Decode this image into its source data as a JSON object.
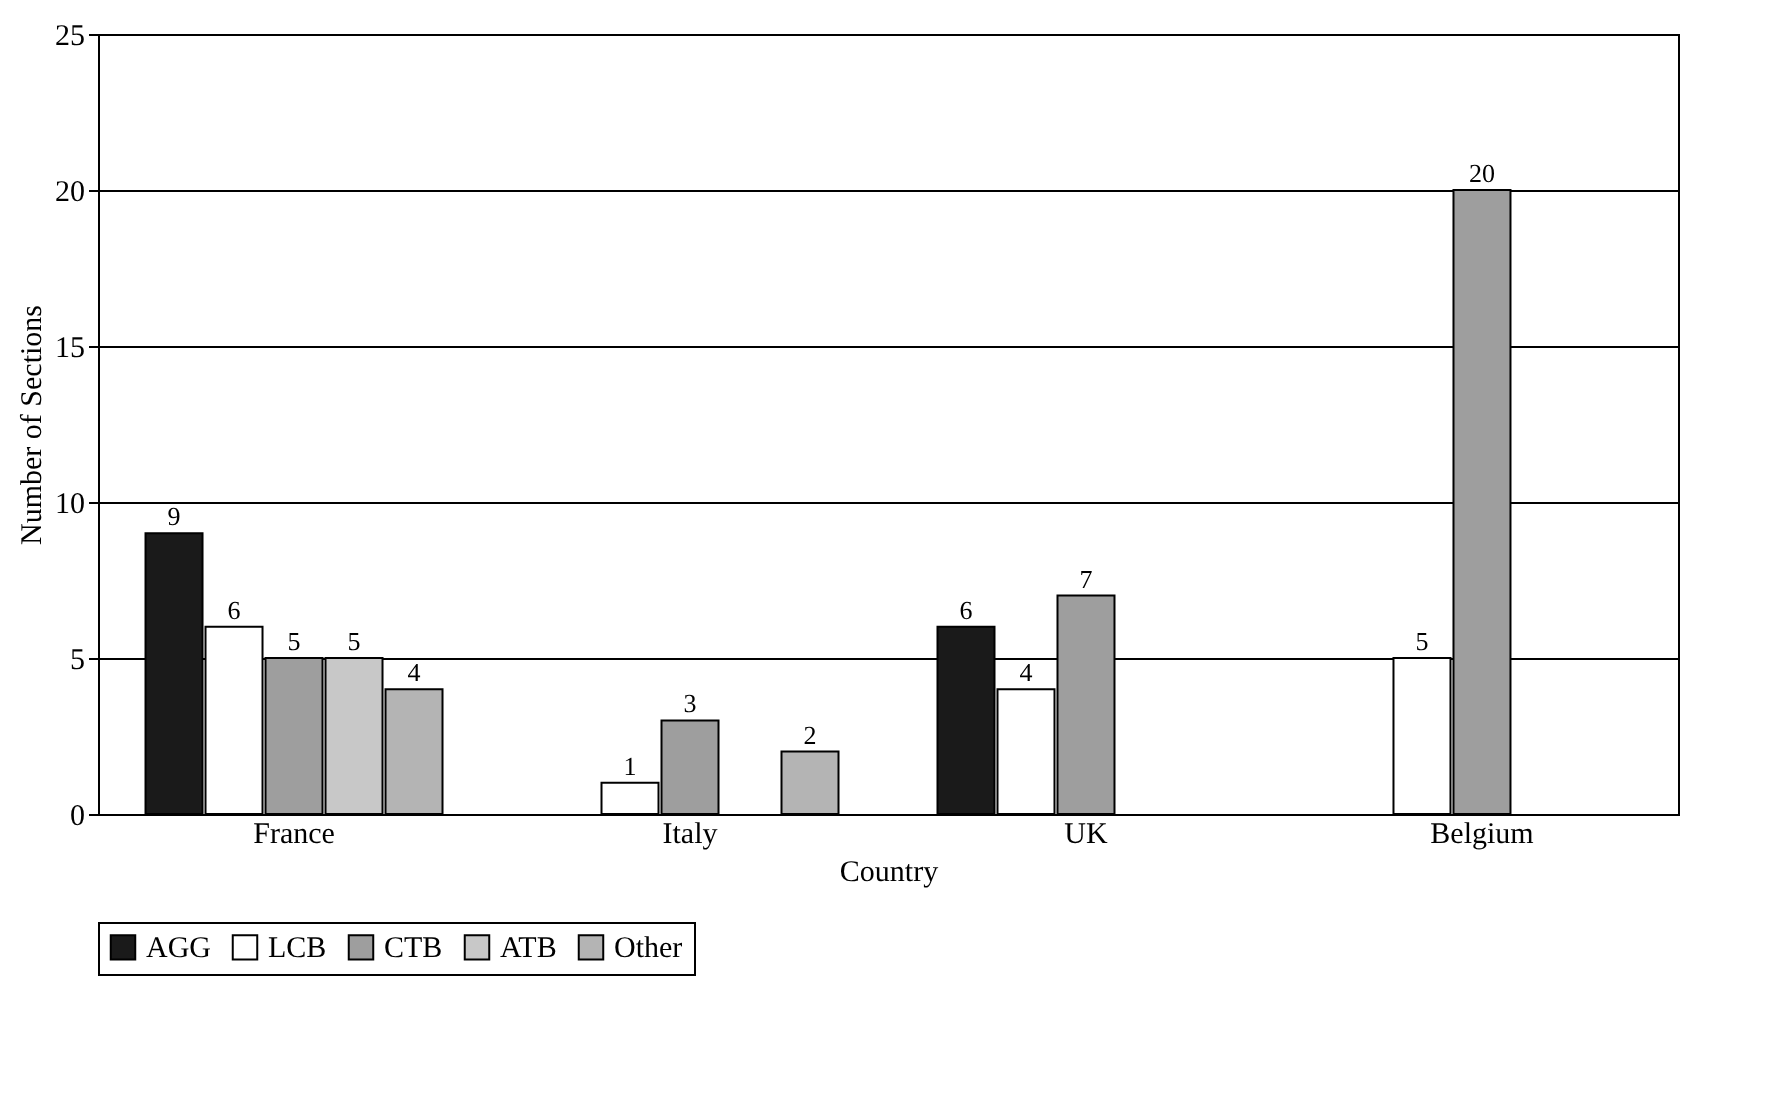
{
  "chart_data": {
    "type": "bar",
    "xlabel": "Country",
    "ylabel": "Number of Sections",
    "categories": [
      "France",
      "Italy",
      "UK",
      "Belgium"
    ],
    "series": [
      {
        "name": "AGG",
        "color": "#1a1a1a",
        "values": [
          9,
          null,
          6,
          null
        ]
      },
      {
        "name": "LCB",
        "color": "#ffffff",
        "values": [
          6,
          1,
          4,
          5
        ]
      },
      {
        "name": "CTB",
        "color": "#9e9e9e",
        "values": [
          5,
          3,
          7,
          20
        ]
      },
      {
        "name": "ATB",
        "color": "#c8c8c8",
        "values": [
          5,
          null,
          null,
          null
        ]
      },
      {
        "name": "Other",
        "color": "#b4b4b4",
        "values": [
          4,
          2,
          null,
          null
        ]
      }
    ],
    "ylim": [
      0,
      25
    ],
    "yticks": [
      0,
      5,
      10,
      15,
      20,
      25
    ],
    "grid": "y",
    "legend": "bottom",
    "data_labels": true
  }
}
